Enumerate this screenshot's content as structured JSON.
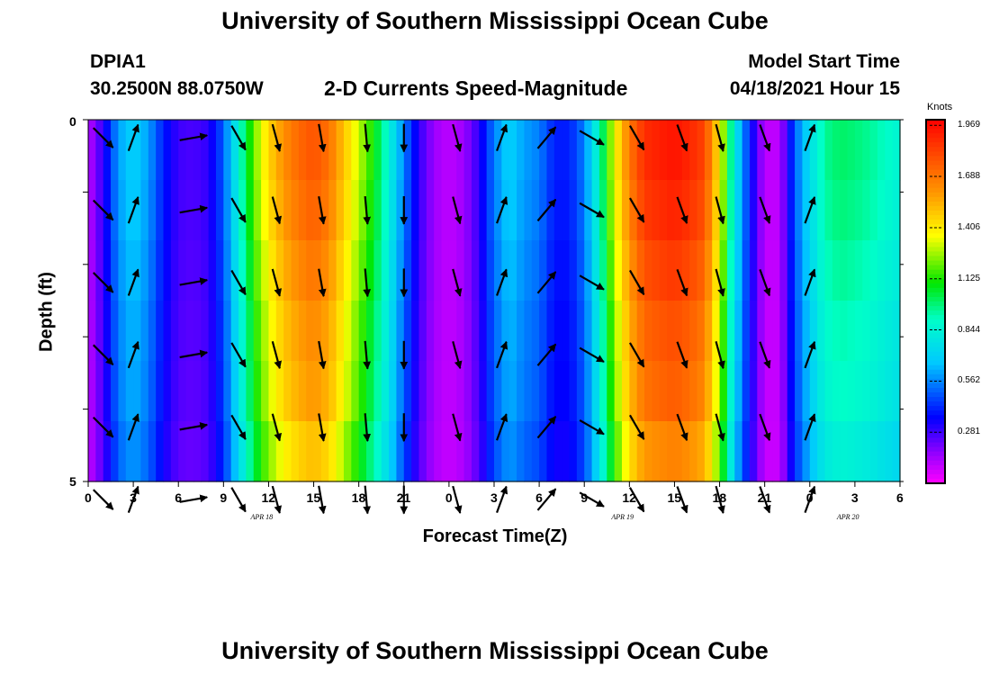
{
  "header": {
    "title": "University of Southern Mississippi Ocean Cube",
    "station": "DPIA1",
    "coords": "30.2500N  88.0750W",
    "plot_title": "2-D Currents Speed-Magnitude",
    "model_label": "Model Start Time",
    "model_time": "04/18/2021 Hour 15",
    "footer_title": "University of Southern Mississippi Ocean Cube"
  },
  "chart_data": {
    "type": "heatmap",
    "title": "2-D Currents Speed-Magnitude",
    "xlabel": "Forecast Time(Z)",
    "ylabel": "Depth (ft)",
    "x_tick_labels": [
      "0",
      "3",
      "6",
      "9",
      "12",
      "15",
      "18",
      "21",
      "0",
      "3",
      "6",
      "9",
      "12",
      "15",
      "18",
      "21",
      "0",
      "3",
      "6"
    ],
    "x_range_hours": [
      0,
      54
    ],
    "date_labels": [
      {
        "text": "APR 18",
        "hour": 12
      },
      {
        "text": "APR 19",
        "hour": 36
      },
      {
        "text": "APR 20",
        "hour": 51
      }
    ],
    "y_tick_labels": [
      "0",
      "5"
    ],
    "ylim": [
      0,
      5
    ],
    "colorbar": {
      "units": "Knots",
      "ticks": [
        "1.969",
        "1.688",
        "1.406",
        "1.125",
        "0.844",
        "0.562",
        "0.281"
      ],
      "range": [
        0,
        2.0
      ]
    },
    "speed_knots_by_hour": [
      [
        0,
        0.1
      ],
      [
        1,
        0.3
      ],
      [
        2,
        0.6
      ],
      [
        3,
        0.7
      ],
      [
        4,
        0.6
      ],
      [
        5,
        0.4
      ],
      [
        6,
        0.28
      ],
      [
        7,
        0.26
      ],
      [
        8,
        0.3
      ],
      [
        9,
        0.5
      ],
      [
        10,
        0.85
      ],
      [
        11,
        1.2
      ],
      [
        12,
        1.45
      ],
      [
        13,
        1.62
      ],
      [
        14,
        1.72
      ],
      [
        15,
        1.78
      ],
      [
        16,
        1.7
      ],
      [
        17,
        1.5
      ],
      [
        18,
        1.3
      ],
      [
        19,
        1.1
      ],
      [
        20,
        0.85
      ],
      [
        21,
        0.55
      ],
      [
        22,
        0.3
      ],
      [
        23,
        0.15
      ],
      [
        24,
        0.1
      ],
      [
        25,
        0.15
      ],
      [
        26,
        0.3
      ],
      [
        27,
        0.55
      ],
      [
        28,
        0.7
      ],
      [
        29,
        0.6
      ],
      [
        30,
        0.55
      ],
      [
        31,
        0.4
      ],
      [
        32,
        0.4
      ],
      [
        33,
        0.55
      ],
      [
        34,
        0.9
      ],
      [
        35,
        1.35
      ],
      [
        36,
        1.68
      ],
      [
        37,
        1.88
      ],
      [
        38,
        1.92
      ],
      [
        39,
        1.95
      ],
      [
        40,
        1.9
      ],
      [
        41,
        1.82
      ],
      [
        42,
        1.4
      ],
      [
        43,
        0.8
      ],
      [
        44,
        0.4
      ],
      [
        45,
        0.1
      ],
      [
        46,
        0.1
      ],
      [
        47,
        0.5
      ],
      [
        48,
        0.75
      ],
      [
        49,
        0.95
      ],
      [
        50,
        1.0
      ],
      [
        51,
        0.98
      ],
      [
        52,
        0.95
      ],
      [
        53,
        0.9
      ],
      [
        54,
        0.85
      ]
    ],
    "depth_speed_factor_by_layer": [
      1.0,
      0.98,
      0.95,
      0.92,
      0.9,
      0.85
    ],
    "vectors": {
      "hours": [
        1,
        3,
        7,
        10,
        12.5,
        15.5,
        18.5,
        21,
        24.5,
        27.5,
        30.5,
        33.5,
        36.5,
        39.5,
        42,
        45,
        48
      ],
      "depths_ft": [
        0.25,
        1.25,
        2.25,
        3.25,
        4.25,
        5.25
      ],
      "direction_deg_by_hour": [
        135,
        20,
        80,
        150,
        165,
        170,
        175,
        180,
        165,
        20,
        40,
        120,
        150,
        160,
        165,
        160,
        20
      ]
    }
  }
}
